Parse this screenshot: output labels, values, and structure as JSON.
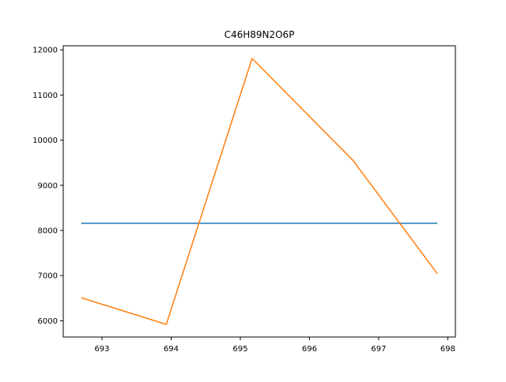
{
  "chart_data": {
    "type": "line",
    "title": "C46H89N2O6P",
    "xlabel": "",
    "ylabel": "",
    "xlim": [
      692.44,
      698.11
    ],
    "ylim": [
      5640,
      12090
    ],
    "x_ticks": [
      693,
      694,
      695,
      696,
      697,
      698
    ],
    "y_ticks": [
      6000,
      7000,
      8000,
      9000,
      10000,
      11000,
      12000
    ],
    "grid": false,
    "legend": "none",
    "series": [
      {
        "color": "#1f77b4",
        "points": [
          [
            692.7,
            8160
          ],
          [
            697.85,
            8160
          ]
        ]
      },
      {
        "color": "#ff7f0e",
        "points": [
          [
            692.7,
            6510
          ],
          [
            693.93,
            5920
          ],
          [
            695.17,
            11810
          ],
          [
            696.63,
            9550
          ],
          [
            697.85,
            7040
          ]
        ]
      }
    ]
  }
}
